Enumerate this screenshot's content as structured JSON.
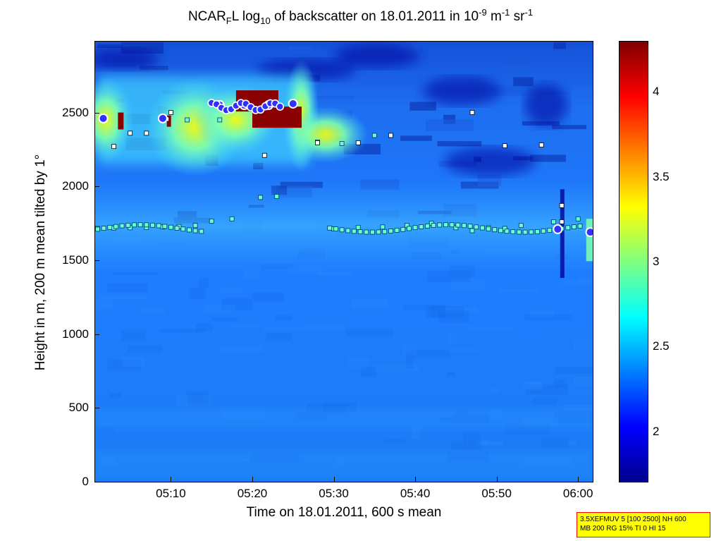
{
  "title": {
    "main": "NCAR",
    "sub_f": "F",
    "after_f": "L log",
    "sub_10": "10",
    "middle": " of backscatter on 18.01.2011 in 10",
    "sup_exp1": "-9",
    "unit_m": " m",
    "sup_exp2": "-1",
    "unit_sr": " sr",
    "sup_exp3": "-1"
  },
  "axes": {
    "ylabel": "Height in m, 200 m mean tilted by 1°",
    "xlabel": "Time on 18.01.2011, 600 s mean"
  },
  "infobox": {
    "line1": "3.5XEFMUV 5 [100 2500] NH 600",
    "line2": "MB 200 RG 15% TI 0 HI 15"
  },
  "colors": {
    "background_blue": "#1f7dff",
    "dark_blue": "#00008f",
    "cyan": "#4dffff",
    "yellow": "#ffff00",
    "dark_red": "#800000",
    "marker_white": "#ffffff",
    "marker_cyan": "#66ffcc",
    "cloud_base": "#cc0000"
  },
  "chart_data": {
    "type": "heatmap",
    "x_ticks": [
      "05:10",
      "05:20",
      "05:30",
      "05:40",
      "05:50",
      "06:00"
    ],
    "x_tick_minutes": [
      310,
      320,
      330,
      340,
      350,
      360
    ],
    "xlim_minutes": [
      300.7,
      361.8
    ],
    "y_ticks": [
      "0",
      "500",
      "1000",
      "1500",
      "2000",
      "2500"
    ],
    "y_tick_values": [
      0,
      500,
      1000,
      1500,
      2000,
      2500
    ],
    "ylim": [
      0,
      2980
    ],
    "colorbar": {
      "ticks": [
        "2",
        "2.5",
        "3",
        "3.5",
        "4"
      ],
      "tick_values": [
        2,
        2.5,
        3,
        3.5,
        4
      ],
      "clim": [
        1.7,
        4.3
      ],
      "colormap": "jet"
    },
    "layers": [
      {
        "name": "boundary layer top",
        "height_range": [
          1700,
          1760
        ],
        "time_range": [
          300.7,
          361.8
        ]
      },
      {
        "name": "cloud layer",
        "height_range": [
          2150,
          2750
        ],
        "time_range": [
          301,
          327
        ]
      }
    ],
    "cyan_markers": [
      [
        301,
        1715
      ],
      [
        303,
        1718
      ],
      [
        305,
        1720
      ],
      [
        307,
        1722
      ],
      [
        309,
        1725
      ],
      [
        311,
        1728
      ],
      [
        313,
        1735
      ],
      [
        315,
        1765
      ],
      [
        317.5,
        1780
      ],
      [
        321,
        1925
      ],
      [
        323,
        1932
      ],
      [
        330,
        1712
      ],
      [
        333,
        1722
      ],
      [
        336,
        1725
      ],
      [
        339,
        1735
      ],
      [
        342,
        1750
      ],
      [
        345,
        1720
      ],
      [
        347,
        1700
      ],
      [
        349,
        1720
      ],
      [
        351,
        1715
      ],
      [
        353,
        1735
      ],
      [
        357,
        1760
      ],
      [
        360,
        1780
      ],
      [
        312,
        2450
      ],
      [
        316,
        2450
      ],
      [
        335,
        2345
      ],
      [
        328,
        2300
      ],
      [
        331,
        2290
      ]
    ],
    "white_markers": [
      [
        303,
        2270
      ],
      [
        305,
        2360
      ],
      [
        307,
        2360
      ],
      [
        309.5,
        2455
      ],
      [
        310,
        2500
      ],
      [
        321.5,
        2210
      ],
      [
        328,
        2295
      ],
      [
        333,
        2295
      ],
      [
        337,
        2345
      ],
      [
        347,
        2500
      ],
      [
        351,
        2275
      ],
      [
        355.5,
        2280
      ],
      [
        358,
        1870
      ],
      [
        358,
        1760
      ]
    ],
    "cloud_base_markers": [
      [
        301.7,
        2460
      ],
      [
        309,
        2460
      ],
      [
        316,
        2550
      ],
      [
        319,
        2550
      ],
      [
        322,
        2550
      ],
      [
        325,
        2560
      ],
      [
        357.5,
        1710
      ],
      [
        361.5,
        1690
      ]
    ]
  }
}
